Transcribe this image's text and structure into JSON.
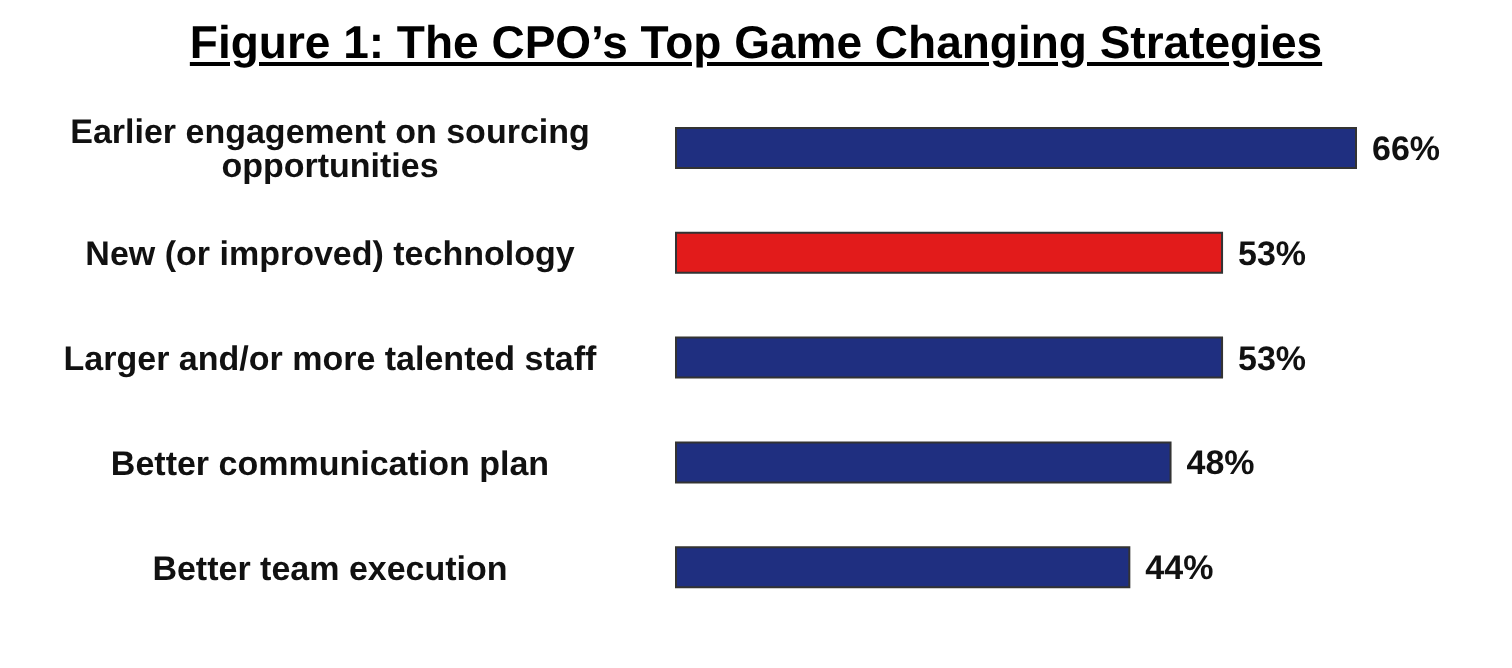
{
  "chart_data": {
    "type": "bar",
    "orientation": "horizontal",
    "title": "Figure 1: The CPO’s Top Game Changing Strategies",
    "categories": [
      "Earlier engagement on sourcing opportunities",
      "New (or improved) technology",
      "Larger and/or more talented staff",
      "Better communication plan",
      "Better team execution"
    ],
    "values": [
      66,
      53,
      53,
      48,
      44
    ],
    "colors": [
      "#1f2f80",
      "#e21b1b",
      "#1f2f80",
      "#1f2f80",
      "#1f2f80"
    ],
    "value_labels": [
      "66%",
      "53%",
      "53%",
      "48%",
      "44%"
    ],
    "grid": false,
    "legend": false
  }
}
